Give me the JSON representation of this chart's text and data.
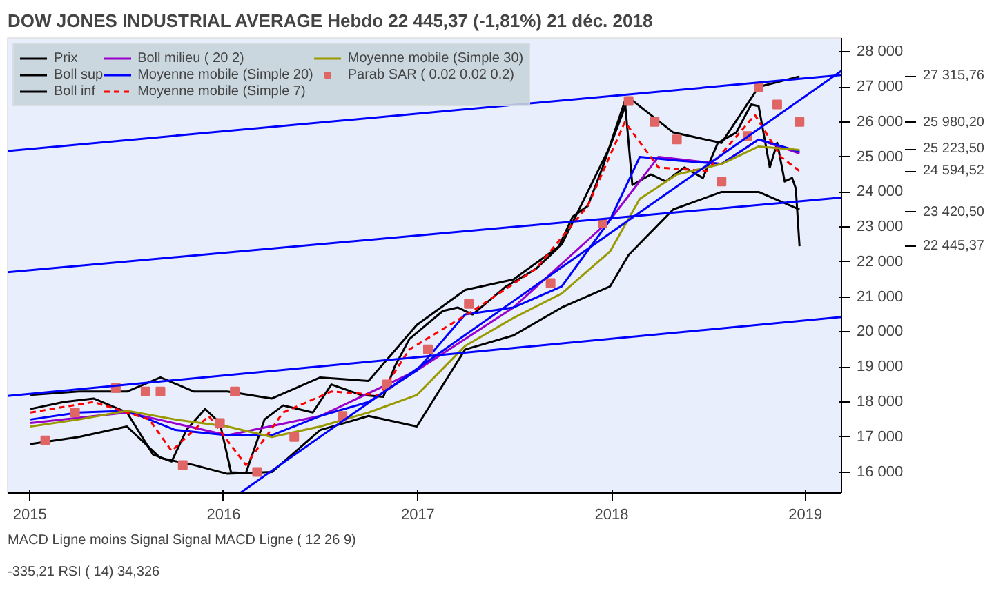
{
  "chart_data": {
    "type": "line",
    "title": "DOW JONES INDUSTRIAL AVERAGE   Hebdo   22 445,37 (-1,81%)   21 déc. 2018",
    "xlim": [
      "2014-11-20",
      "2019-03-10"
    ],
    "ylim": [
      15400,
      28400
    ],
    "xticks": [
      {
        "value": "2015-01-01",
        "label": "2015"
      },
      {
        "value": "2016-01-01",
        "label": "2016"
      },
      {
        "value": "2017-01-01",
        "label": "2017"
      },
      {
        "value": "2018-01-01",
        "label": "2018"
      },
      {
        "value": "2019-01-01",
        "label": "2019"
      }
    ],
    "yticks": [
      {
        "value": 16000,
        "label": "16 000"
      },
      {
        "value": 17000,
        "label": "17 000"
      },
      {
        "value": 18000,
        "label": "18 000"
      },
      {
        "value": 19000,
        "label": "19 000"
      },
      {
        "value": 20000,
        "label": "20 000"
      },
      {
        "value": 21000,
        "label": "21 000"
      },
      {
        "value": 22000,
        "label": "22 000"
      },
      {
        "value": 23000,
        "label": "23 000"
      },
      {
        "value": 24000,
        "label": "24 000"
      },
      {
        "value": 25000,
        "label": "25 000"
      },
      {
        "value": 26000,
        "label": "26 000"
      },
      {
        "value": 27000,
        "label": "27 000"
      },
      {
        "value": 28000,
        "label": "28 000"
      }
    ],
    "grid": false,
    "legend": "top left",
    "series": [
      {
        "name": "Prix",
        "color": "#000000",
        "x": [
          "2015-01-02",
          "2015-03-06",
          "2015-05-01",
          "2015-07-03",
          "2015-08-21",
          "2015-09-25",
          "2015-10-23",
          "2015-11-27",
          "2015-12-25",
          "2016-01-15",
          "2016-02-12",
          "2016-03-18",
          "2016-04-22",
          "2016-06-17",
          "2016-07-22",
          "2016-09-16",
          "2016-10-28",
          "2016-11-18",
          "2016-12-16",
          "2017-02-17",
          "2017-03-17",
          "2017-04-14",
          "2017-06-16",
          "2017-08-11",
          "2017-09-22",
          "2017-10-20",
          "2017-11-17",
          "2017-12-15",
          "2018-01-26",
          "2018-02-09",
          "2018-03-16",
          "2018-04-13",
          "2018-05-18",
          "2018-06-22",
          "2018-07-20",
          "2018-08-24",
          "2018-09-21",
          "2018-10-05",
          "2018-10-26",
          "2018-11-09",
          "2018-11-23",
          "2018-12-07",
          "2018-12-14",
          "2018-12-21"
        ],
        "values": [
          17800,
          18000,
          18100,
          17700,
          16500,
          16300,
          17200,
          17800,
          17400,
          15990,
          15970,
          17500,
          17900,
          17700,
          18500,
          18200,
          18150,
          19000,
          19800,
          20600,
          20700,
          20500,
          21300,
          21800,
          22400,
          23300,
          23600,
          24700,
          26600,
          24200,
          24500,
          24300,
          24700,
          24400,
          25400,
          25700,
          26500,
          26450,
          24700,
          25400,
          24300,
          24400,
          24100,
          22450
        ]
      },
      {
        "name": "Boll sup",
        "color": "#000000",
        "x": [
          "2015-01-02",
          "2015-04-03",
          "2015-07-03",
          "2015-09-04",
          "2015-11-06",
          "2016-01-08",
          "2016-04-01",
          "2016-07-01",
          "2016-09-30",
          "2016-12-30",
          "2017-03-31",
          "2017-06-30",
          "2017-09-29",
          "2017-12-29",
          "2018-02-02",
          "2018-04-27",
          "2018-07-27",
          "2018-10-05",
          "2018-12-21"
        ],
        "values": [
          18200,
          18300,
          18300,
          18700,
          18300,
          18300,
          18100,
          18700,
          18600,
          20200,
          21200,
          21500,
          22500,
          25300,
          26700,
          25700,
          25400,
          27000,
          27300
        ]
      },
      {
        "name": "Boll inf",
        "color": "#000000",
        "x": [
          "2015-01-02",
          "2015-04-03",
          "2015-07-03",
          "2015-09-04",
          "2015-11-06",
          "2016-01-08",
          "2016-04-01",
          "2016-07-01",
          "2016-09-30",
          "2016-12-30",
          "2017-03-31",
          "2017-06-30",
          "2017-09-29",
          "2017-12-29",
          "2018-02-02",
          "2018-04-27",
          "2018-07-27",
          "2018-10-05",
          "2018-12-21"
        ],
        "values": [
          16800,
          17000,
          17300,
          16400,
          16200,
          15950,
          16000,
          17200,
          17600,
          17300,
          19500,
          19900,
          20700,
          21300,
          22200,
          23500,
          24000,
          24000,
          23500
        ]
      },
      {
        "name": "Boll milieu ( 20 2)",
        "color": "#9900cc",
        "x": [
          "2015-01-02",
          "2015-07-03",
          "2016-01-08",
          "2016-07-01",
          "2016-12-30",
          "2017-06-30",
          "2017-12-29",
          "2018-03-30",
          "2018-07-27",
          "2018-10-05",
          "2018-12-21"
        ],
        "values": [
          17400,
          17700,
          17050,
          17600,
          18900,
          20700,
          23200,
          25000,
          24800,
          25500,
          25100
        ]
      },
      {
        "name": "Moyenne mobile (Simple 20)",
        "color": "#0000ff",
        "x": [
          "2015-01-02",
          "2015-04-03",
          "2015-07-03",
          "2015-10-02",
          "2016-01-08",
          "2016-04-01",
          "2016-07-01",
          "2016-09-30",
          "2016-12-30",
          "2017-03-31",
          "2017-06-30",
          "2017-09-29",
          "2017-12-29",
          "2018-02-23",
          "2018-05-04",
          "2018-07-27",
          "2018-10-05",
          "2018-12-21"
        ],
        "values": [
          17500,
          17700,
          17750,
          17200,
          17050,
          17050,
          17600,
          18000,
          18900,
          20500,
          20700,
          21300,
          23200,
          25000,
          24900,
          24800,
          25500,
          25150
        ]
      },
      {
        "name": "Moyenne mobile (Simple 7)",
        "color": "#ff0000",
        "line_style": "dashed",
        "x": [
          "2015-01-02",
          "2015-05-01",
          "2015-08-14",
          "2015-09-25",
          "2015-12-04",
          "2016-02-12",
          "2016-04-22",
          "2016-07-22",
          "2016-10-21",
          "2016-12-16",
          "2017-04-14",
          "2017-08-11",
          "2017-11-17",
          "2018-01-26",
          "2018-03-30",
          "2018-06-29",
          "2018-09-28",
          "2018-11-16",
          "2018-12-21"
        ],
        "values": [
          17700,
          18000,
          17500,
          16600,
          17600,
          16200,
          17700,
          18300,
          18200,
          19500,
          20600,
          21800,
          23600,
          26000,
          24700,
          24600,
          26200,
          25000,
          24600
        ]
      },
      {
        "name": "Moyenne mobile (Simple 30)",
        "color": "#999900",
        "x": [
          "2015-01-02",
          "2015-04-03",
          "2015-07-03",
          "2015-10-02",
          "2016-01-08",
          "2016-04-01",
          "2016-07-01",
          "2016-09-30",
          "2016-12-30",
          "2017-03-31",
          "2017-06-30",
          "2017-09-29",
          "2017-12-29",
          "2018-02-23",
          "2018-05-04",
          "2018-07-27",
          "2018-10-05",
          "2018-12-21"
        ],
        "values": [
          17300,
          17500,
          17750,
          17500,
          17300,
          17000,
          17300,
          17700,
          18200,
          19600,
          20400,
          21100,
          22300,
          23800,
          24500,
          24800,
          25300,
          25200
        ]
      },
      {
        "name": "Parab SAR ( 0.02 0.02 0.2)",
        "color": "#e06666",
        "type": "scatter",
        "marker": "square",
        "x": [
          "2015-01-30",
          "2015-03-27",
          "2015-06-12",
          "2015-08-07",
          "2015-09-04",
          "2015-10-16",
          "2015-12-25",
          "2016-01-22",
          "2016-03-04",
          "2016-05-13",
          "2016-08-12",
          "2016-11-04",
          "2017-01-20",
          "2017-04-07",
          "2017-09-08",
          "2017-12-15",
          "2018-02-02",
          "2018-03-23",
          "2018-05-04",
          "2018-07-27",
          "2018-09-14",
          "2018-10-05",
          "2018-11-09",
          "2018-12-21"
        ],
        "values": [
          16900,
          17700,
          18400,
          18300,
          18300,
          16200,
          17400,
          18300,
          16000,
          17000,
          17600,
          18500,
          19500,
          20800,
          21400,
          23100,
          26600,
          26000,
          25500,
          24300,
          25600,
          27000,
          26500,
          26000
        ]
      },
      {
        "color": "#0000ff",
        "x": [
          "2014-11-20",
          "2019-03-10"
        ],
        "values": [
          25170,
          27340
        ]
      },
      {
        "color": "#0000ff",
        "x": [
          "2014-11-20",
          "2019-03-10"
        ],
        "values": [
          21710,
          23840
        ]
      },
      {
        "color": "#0000ff",
        "x": [
          "2014-11-20",
          "2019-03-10"
        ],
        "values": [
          18170,
          20430
        ]
      },
      {
        "color": "#0000ff",
        "x": [
          "2016-02-01",
          "2019-03-10"
        ],
        "values": [
          15400,
          27460
        ]
      }
    ],
    "ref_lines": [
      {
        "axis": "y",
        "value": 27315.76,
        "label": "27 315,76"
      },
      {
        "axis": "y",
        "value": 25980.2,
        "label": "25 980,20"
      },
      {
        "axis": "y",
        "value": 25223.5,
        "label": "25 223,50"
      },
      {
        "axis": "y",
        "value": 24594.52,
        "label": "24 594,52"
      },
      {
        "axis": "y",
        "value": 23420.5,
        "label": "23 420,50"
      },
      {
        "axis": "y",
        "value": 22445.37,
        "label": "22 445,37"
      }
    ],
    "annotations": [
      "MACD Ligne moins Signal",
      "Signal",
      "MACD Ligne ( 12 26 9)",
      "-335,21",
      "RSI ( 14)",
      "34,326"
    ]
  }
}
